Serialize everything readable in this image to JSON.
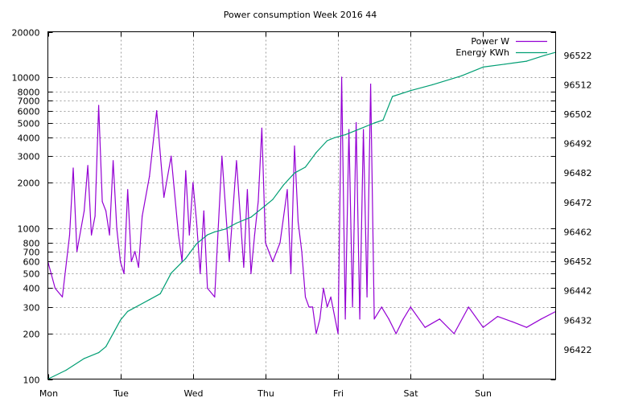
{
  "chart_data": {
    "type": "line",
    "title": "Power consumption Week 2016 44",
    "x_tick_labels": [
      "Mon",
      "Tue",
      "Wed",
      "Thu",
      "Fri",
      "Sat",
      "Sun"
    ],
    "xlim_days": [
      0,
      7
    ],
    "y_left": {
      "scale": "log",
      "range": [
        100,
        20000
      ],
      "ticks": [
        100,
        200,
        300,
        400,
        500,
        600,
        700,
        800,
        1000,
        2000,
        3000,
        4000,
        5000,
        6000,
        7000,
        8000,
        10000,
        20000
      ],
      "tick_labels": [
        "100",
        "200",
        "300",
        "400",
        "500",
        "600",
        "700",
        "800",
        "1000",
        "2000",
        "3000",
        "4000",
        "5000",
        "6000",
        "7000",
        "8000",
        "10000",
        "20000"
      ]
    },
    "y_right": {
      "scale": "linear",
      "range": [
        96412,
        96530
      ],
      "ticks": [
        96422,
        96432,
        96442,
        96452,
        96462,
        96472,
        96482,
        96492,
        96502,
        96512,
        96522
      ],
      "tick_labels": [
        "96422",
        "96432",
        "96442",
        "96452",
        "96462",
        "96472",
        "96482",
        "96492",
        "96502",
        "96512",
        "96522"
      ]
    },
    "grid": true,
    "legend_position": "top-right",
    "series": [
      {
        "name": "Power W",
        "axis": "left",
        "color": "#9400d3",
        "x": [
          0.0,
          0.1,
          0.2,
          0.3,
          0.35,
          0.4,
          0.5,
          0.55,
          0.6,
          0.65,
          0.7,
          0.75,
          0.8,
          0.85,
          0.9,
          0.95,
          1.0,
          1.05,
          1.1,
          1.15,
          1.2,
          1.25,
          1.3,
          1.4,
          1.5,
          1.6,
          1.7,
          1.8,
          1.85,
          1.9,
          1.95,
          2.0,
          2.05,
          2.1,
          2.15,
          2.2,
          2.3,
          2.4,
          2.5,
          2.6,
          2.7,
          2.75,
          2.8,
          2.85,
          2.9,
          2.95,
          3.0,
          3.1,
          3.2,
          3.3,
          3.35,
          3.4,
          3.45,
          3.5,
          3.55,
          3.6,
          3.65,
          3.7,
          3.75,
          3.8,
          3.85,
          3.9,
          4.0,
          4.05,
          4.1,
          4.15,
          4.2,
          4.25,
          4.3,
          4.35,
          4.4,
          4.45,
          4.5,
          4.6,
          4.7,
          4.8,
          4.9,
          5.0,
          5.2,
          5.4,
          5.6,
          5.8,
          6.0,
          6.2,
          6.4,
          6.6,
          6.8,
          7.0
        ],
        "values": [
          600,
          400,
          350,
          900,
          2500,
          700,
          1300,
          2600,
          900,
          1200,
          6500,
          1500,
          1300,
          900,
          2800,
          1000,
          600,
          500,
          1800,
          600,
          700,
          550,
          1200,
          2200,
          6000,
          1600,
          3000,
          900,
          600,
          2400,
          900,
          2000,
          1100,
          500,
          1300,
          400,
          350,
          3000,
          600,
          2800,
          550,
          1800,
          500,
          900,
          1500,
          4600,
          800,
          600,
          800,
          1800,
          500,
          3500,
          1100,
          700,
          350,
          300,
          300,
          200,
          250,
          400,
          300,
          350,
          200,
          10000,
          250,
          4500,
          300,
          5000,
          250,
          4500,
          350,
          9000,
          250,
          300,
          250,
          200,
          250,
          300,
          220,
          250,
          200,
          300,
          220,
          260,
          240,
          220,
          250,
          280
        ]
      },
      {
        "name": "Energy KWh",
        "axis": "right",
        "color": "#009e73",
        "x": [
          0.0,
          0.25,
          0.5,
          0.7,
          0.8,
          1.0,
          1.1,
          1.25,
          1.4,
          1.55,
          1.7,
          1.9,
          2.05,
          2.2,
          2.3,
          2.45,
          2.6,
          2.8,
          2.95,
          3.1,
          3.25,
          3.4,
          3.55,
          3.7,
          3.85,
          3.95,
          4.1,
          4.3,
          4.5,
          4.62,
          4.75,
          5.0,
          5.3,
          5.7,
          6.0,
          6.3,
          6.6,
          6.85,
          7.0
        ],
        "values": [
          96412,
          96415,
          96419,
          96421,
          96423,
          96432,
          96435,
          96437,
          96439,
          96441,
          96448,
          96453,
          96458,
          96461,
          96462,
          96463,
          96465,
          96467,
          96470,
          96473,
          96478,
          96482,
          96484,
          96489,
          96493,
          96494,
          96495,
          96497,
          96499,
          96500,
          96508,
          96510,
          96512,
          96515,
          96518,
          96519,
          96520,
          96522,
          96523
        ]
      }
    ]
  }
}
